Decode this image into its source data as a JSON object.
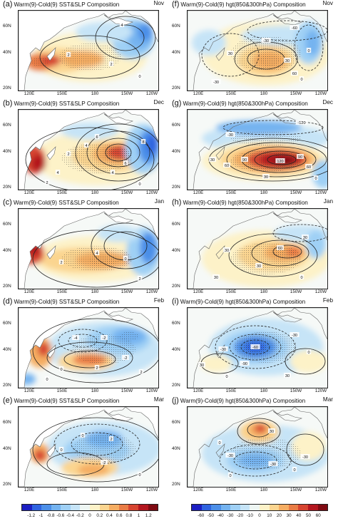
{
  "panels": [
    {
      "letter": "(a)",
      "title": "Warm(9)-Cold(9) SST&SLP Composition",
      "month": "Nov",
      "kind": "sst",
      "pattern": "a",
      "contour_labels": [
        "4",
        "2",
        "2",
        "0"
      ]
    },
    {
      "letter": "(b)",
      "title": "Warm(9)-Cold(9) SST&SLP Composition",
      "month": "Dec",
      "kind": "sst",
      "pattern": "b",
      "contour_labels": [
        "6",
        "4",
        "2",
        "8",
        "6",
        "4",
        "4",
        "2",
        "0"
      ]
    },
    {
      "letter": "(c)",
      "title": "Warm(9)-Cold(9) SST&SLP Composition",
      "month": "Jan",
      "kind": "sst",
      "pattern": "c",
      "contour_labels": [
        "4",
        "2",
        "0",
        "2"
      ]
    },
    {
      "letter": "(d)",
      "title": "Warm(9)-Cold(9) SST&SLP Composition",
      "month": "Feb",
      "kind": "sst",
      "pattern": "d",
      "contour_labels": [
        "-4",
        "-2",
        "-2",
        "0",
        "2",
        "2",
        "0"
      ]
    },
    {
      "letter": "(e)",
      "title": "Warm(9)-Cold(9) SST&SLP Composition",
      "month": "Mar",
      "kind": "sst",
      "pattern": "e",
      "contour_labels": [
        "0",
        "2",
        "0",
        "-2",
        "0"
      ]
    },
    {
      "letter": "(f)",
      "title": "Warm(9)-Cold(9) hgt(850&300hPa) Composition",
      "month": "Nov",
      "kind": "hgt",
      "pattern": "f",
      "contour_labels": [
        "-60",
        "-30",
        "30",
        "30",
        "60",
        "0",
        "-30",
        "0"
      ]
    },
    {
      "letter": "(g)",
      "title": "Warm(9)-Cold(9) hgt(850&300hPa) Composition",
      "month": "Dec",
      "kind": "hgt",
      "pattern": "g",
      "contour_labels": [
        "-120",
        "-30",
        "30",
        "60",
        "90",
        "120",
        "90",
        "60",
        "30",
        "0"
      ]
    },
    {
      "letter": "(h)",
      "title": "Warm(9)-Cold(9) hgt(850&300hPa) Composition",
      "month": "Jan",
      "kind": "hgt",
      "pattern": "h",
      "contour_labels": [
        "30",
        "60",
        "30",
        "30",
        "0",
        "30"
      ]
    },
    {
      "letter": "(i)",
      "title": "Warm(9)-Cold(9) hgt(850&300hPa) Composition",
      "month": "Feb",
      "kind": "hgt",
      "pattern": "i",
      "contour_labels": [
        "-60",
        "-90",
        "-30",
        "0",
        "30",
        "-30",
        "0",
        "30"
      ]
    },
    {
      "letter": "(j)",
      "title": "Warm(9)-Cold(9) hgt(850&300hPa) Composition",
      "month": "Mar",
      "kind": "hgt",
      "pattern": "j",
      "contour_labels": [
        "30",
        "0",
        "-30",
        "-30",
        "0",
        "-30",
        "0"
      ]
    }
  ],
  "axes": {
    "lat_ticks": [
      "60N",
      "40N",
      "20N"
    ],
    "lon_ticks": [
      "120E",
      "150E",
      "180",
      "150W",
      "120W"
    ]
  },
  "colorbars": {
    "sst": {
      "ticks": [
        "-1.2",
        "-1",
        "-0.8",
        "-0.6",
        "-0.4",
        "-0.2",
        "0",
        "0.2",
        "0.4",
        "0.6",
        "0.8",
        "1",
        "1.2"
      ],
      "colors": [
        "#1c1fc2",
        "#2f63e0",
        "#4c8fe8",
        "#74b3f0",
        "#9fd0f5",
        "#c6e4f7",
        "#eef6f3",
        "#fdf2c8",
        "#fbd590",
        "#f5ad62",
        "#e97c45",
        "#d64430",
        "#b3161f",
        "#7f0a12"
      ]
    },
    "hgt": {
      "ticks": [
        "-60",
        "-50",
        "-40",
        "-30",
        "-20",
        "-10",
        "0",
        "10",
        "20",
        "30",
        "40",
        "50",
        "60"
      ],
      "colors": [
        "#1c1fc2",
        "#2f63e0",
        "#4c8fe8",
        "#74b3f0",
        "#9fd0f5",
        "#c6e4f7",
        "#eef6f3",
        "#fdf2c8",
        "#fbd590",
        "#f5ad62",
        "#e97c45",
        "#d64430",
        "#b3161f",
        "#7f0a12"
      ]
    }
  }
}
